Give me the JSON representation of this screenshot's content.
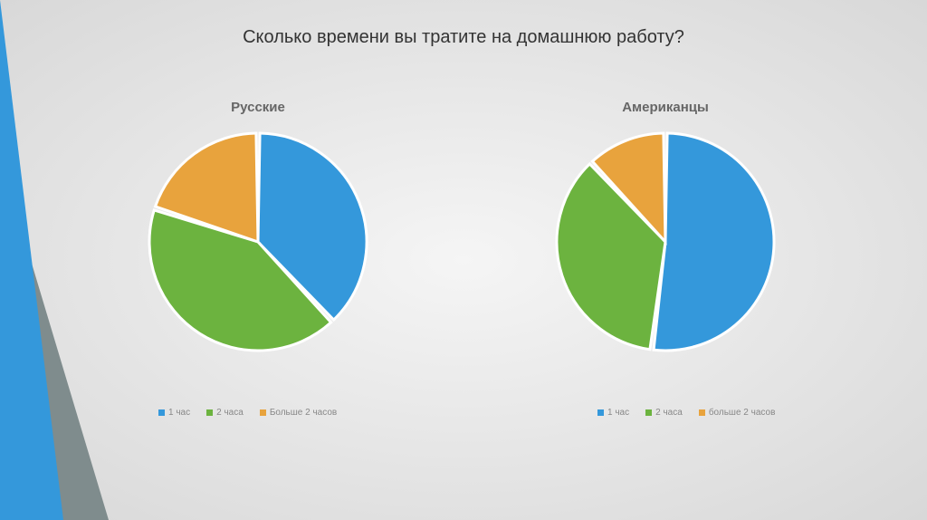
{
  "title": "Сколько времени вы тратите на домашнюю работу?",
  "colors": {
    "blue": "#3498db",
    "green": "#6cb33f",
    "orange": "#e8a33d",
    "white": "#ffffff",
    "triangle_blue": "#3498db",
    "triangle_gray": "#7f8c8d"
  },
  "chart_left": {
    "title": "Русские",
    "type": "pie",
    "slices": [
      {
        "label": "1 час",
        "value": 38,
        "color": "#3498db"
      },
      {
        "label": "2 часа",
        "value": 42,
        "color": "#6cb33f"
      },
      {
        "label": "Больше 2 часов",
        "value": 20,
        "color": "#e8a33d"
      }
    ],
    "radius": 120,
    "slice_gap_deg": 2,
    "start_angle_deg": -90
  },
  "chart_right": {
    "title": "Американцы",
    "type": "pie",
    "slices": [
      {
        "label": "1 час",
        "value": 52,
        "color": "#3498db"
      },
      {
        "label": "2 часа",
        "value": 36,
        "color": "#6cb33f"
      },
      {
        "label": "больше 2 часов",
        "value": 12,
        "color": "#e8a33d"
      }
    ],
    "radius": 120,
    "slice_gap_deg": 2,
    "start_angle_deg": -90
  },
  "legend_left": {
    "items": [
      {
        "label": "1 час",
        "color": "#3498db"
      },
      {
        "label": "2 часа",
        "color": "#6cb33f"
      },
      {
        "label": "Больше 2 часов",
        "color": "#e8a33d"
      }
    ]
  },
  "legend_right": {
    "items": [
      {
        "label": "1 час",
        "color": "#3498db"
      },
      {
        "label": "2 часа",
        "color": "#6cb33f"
      },
      {
        "label": "больше 2 часов",
        "color": "#e8a33d"
      }
    ]
  }
}
